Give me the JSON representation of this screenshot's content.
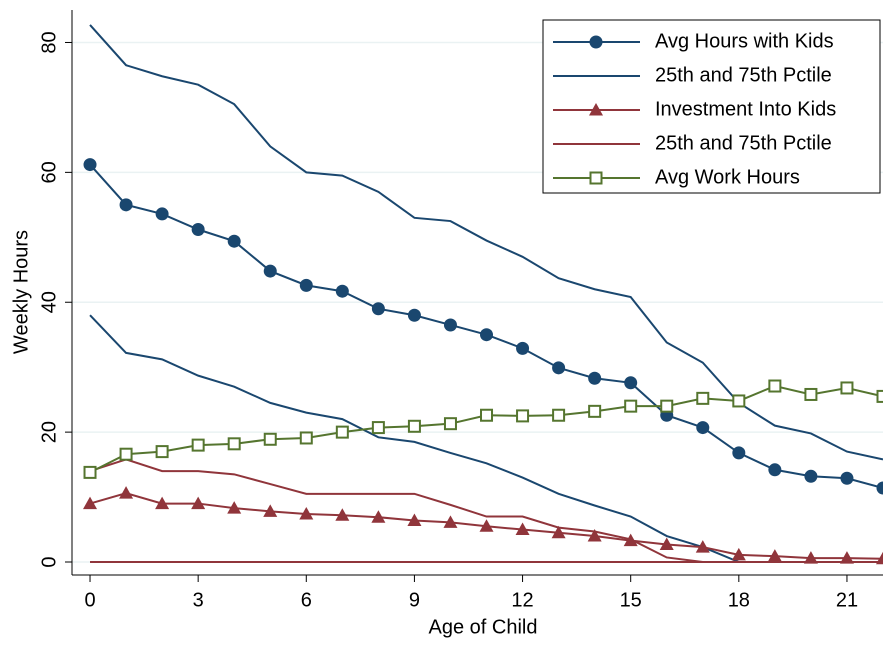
{
  "chart_data": {
    "type": "line",
    "x": [
      0,
      1,
      2,
      3,
      4,
      5,
      6,
      7,
      8,
      9,
      10,
      11,
      12,
      13,
      14,
      15,
      16,
      17,
      18,
      19,
      20,
      21,
      22
    ],
    "xlabel": "Age of Child",
    "ylabel": "Weekly Hours",
    "xlim": [
      -0.5,
      22
    ],
    "xticks": [
      0,
      3,
      6,
      9,
      12,
      15,
      18,
      21
    ],
    "ylim": [
      -2,
      85
    ],
    "yticks": [
      0,
      20,
      40,
      60,
      80
    ],
    "grid": true,
    "legend": "top-right",
    "series": [
      {
        "name": "Avg Hours with Kids",
        "color": "#1a476f",
        "marker": "circle",
        "values": [
          61.2,
          55,
          53.6,
          51.2,
          49.4,
          44.8,
          42.6,
          41.7,
          39,
          38,
          36.5,
          35,
          32.9,
          29.9,
          28.3,
          27.6,
          22.6,
          20.7,
          16.8,
          14.2,
          13.2,
          12.9,
          11.4
        ]
      },
      {
        "name": "25th and 75th Pctile",
        "color": "#1a476f",
        "upper": [
          82.7,
          76.5,
          74.8,
          73.5,
          70.5,
          64,
          60,
          59.5,
          57,
          53,
          52.5,
          49.5,
          47,
          43.7,
          42,
          40.8,
          33.8,
          30.7,
          24.5,
          21,
          19.8,
          17,
          15.8
        ],
        "lower": [
          38,
          32.2,
          31.2,
          28.7,
          27,
          24.5,
          23,
          22,
          19.2,
          18.5,
          16.8,
          15.2,
          13,
          10.5,
          8.7,
          7,
          4,
          2.3,
          0,
          0,
          0,
          0,
          0
        ]
      },
      {
        "name": "Investment Into Kids",
        "color": "#90353b",
        "marker": "triangle",
        "values": [
          9,
          10.6,
          9,
          9,
          8.3,
          7.8,
          7.4,
          7.2,
          6.9,
          6.4,
          6.1,
          5.5,
          5,
          4.5,
          4,
          3.3,
          2.7,
          2.3,
          1.1,
          0.9,
          0.6,
          0.6,
          0.5
        ]
      },
      {
        "name": "25th and 75th Pctile",
        "color": "#90353b",
        "upper": [
          14,
          15.8,
          14,
          14,
          13.5,
          12,
          10.5,
          10.5,
          10.5,
          10.5,
          8.8,
          7,
          7,
          5.3,
          4.7,
          3.5,
          0.7,
          0,
          0,
          0,
          0,
          0,
          0
        ],
        "lower": [
          0,
          0,
          0,
          0,
          0,
          0,
          0,
          0,
          0,
          0,
          0,
          0,
          0,
          0,
          0,
          0,
          0,
          0,
          0,
          0,
          0,
          0,
          0
        ]
      },
      {
        "name": "Avg Work Hours",
        "color": "#55752f",
        "marker": "square",
        "values": [
          13.8,
          16.6,
          17,
          18,
          18.2,
          18.9,
          19.1,
          20,
          20.7,
          20.9,
          21.3,
          22.6,
          22.5,
          22.6,
          23.2,
          24,
          24,
          25.2,
          24.8,
          27.1,
          25.8,
          26.8,
          25.5
        ]
      }
    ]
  }
}
